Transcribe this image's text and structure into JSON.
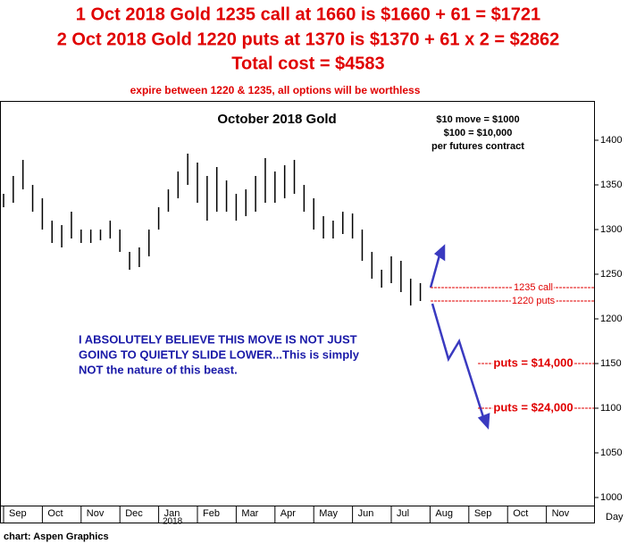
{
  "header": {
    "lines": [
      "1 Oct 2018 Gold 1235 call at 1660 is $1660 + 61 = $1721",
      "2 Oct 2018 Gold 1220 puts at 1370 is $1370 + 61 x 2 = $2862",
      "Total cost = $4583"
    ],
    "note": "expire between 1220 & 1235, all options will be worthless"
  },
  "chart_data": {
    "type": "ohlc",
    "title": "October 2018 Gold",
    "info": [
      "$10 move = $1000",
      "$100 = $10,000",
      "per futures contract"
    ],
    "comment": [
      "I ABSOLUTELY BELIEVE THIS MOVE IS NOT JUST",
      "GOING TO QUIETLY SLIDE LOWER...This is simply",
      "NOT the nature of this beast."
    ],
    "color": "#000000",
    "x": [
      0,
      0.25,
      0.5,
      0.75,
      1,
      1.25,
      1.5,
      1.75,
      2,
      2.25,
      2.5,
      2.75,
      3,
      3.25,
      3.5,
      3.75,
      4,
      4.25,
      4.5,
      4.75,
      5,
      5.25,
      5.5,
      5.75,
      6,
      6.25,
      6.5,
      6.75,
      7,
      7.25,
      7.5,
      7.75,
      8,
      8.25,
      8.5,
      8.75,
      9,
      9.25,
      9.5,
      9.75,
      10,
      10.25,
      10.5,
      10.75
    ],
    "high": [
      1340,
      1360,
      1378,
      1350,
      1335,
      1310,
      1305,
      1320,
      1300,
      1300,
      1300,
      1310,
      1300,
      1275,
      1280,
      1300,
      1325,
      1345,
      1365,
      1385,
      1375,
      1360,
      1370,
      1355,
      1340,
      1345,
      1360,
      1380,
      1365,
      1372,
      1378,
      1350,
      1335,
      1315,
      1310,
      1320,
      1318,
      1300,
      1275,
      1255,
      1270,
      1265,
      1245,
      1240
    ],
    "low": [
      1325,
      1330,
      1345,
      1320,
      1300,
      1285,
      1280,
      1290,
      1285,
      1285,
      1288,
      1290,
      1275,
      1255,
      1258,
      1270,
      1300,
      1320,
      1335,
      1350,
      1330,
      1310,
      1320,
      1320,
      1310,
      1315,
      1320,
      1330,
      1330,
      1335,
      1340,
      1320,
      1300,
      1290,
      1290,
      1295,
      1290,
      1265,
      1245,
      1235,
      1240,
      1230,
      1215,
      1220
    ],
    "levels": [
      {
        "value": 1235,
        "label": "1235 call"
      },
      {
        "value": 1220,
        "label": "1220 puts"
      },
      {
        "value": 1150,
        "label": "puts = $14,000"
      },
      {
        "value": 1100,
        "label": "puts = $24,000"
      }
    ],
    "level_color": "#e00000",
    "xlim": [
      0,
      15.23
    ],
    "xticks": [
      {
        "value": 0,
        "label": "Sep"
      },
      {
        "value": 1,
        "label": "Oct"
      },
      {
        "value": 2,
        "label": "Nov"
      },
      {
        "value": 3,
        "label": "Dec"
      },
      {
        "value": 4,
        "label": "Jan"
      },
      {
        "value": 5,
        "label": "Feb"
      },
      {
        "value": 6,
        "label": "Mar"
      },
      {
        "value": 7,
        "label": "Apr"
      },
      {
        "value": 8,
        "label": "May"
      },
      {
        "value": 9,
        "label": "Jun"
      },
      {
        "value": 10,
        "label": "Jul"
      },
      {
        "value": 11,
        "label": "Aug"
      },
      {
        "value": 12,
        "label": "Sep"
      },
      {
        "value": 13,
        "label": "Oct"
      },
      {
        "value": 14,
        "label": "Nov"
      }
    ],
    "year_label": "2018",
    "x_unit": "Day",
    "ylim": [
      992,
      1442
    ],
    "yticks": [
      1000,
      1050,
      1100,
      1150,
      1200,
      1250,
      1300,
      1350,
      1400
    ],
    "grid": false
  },
  "footer": "chart: Aspen Graphics"
}
